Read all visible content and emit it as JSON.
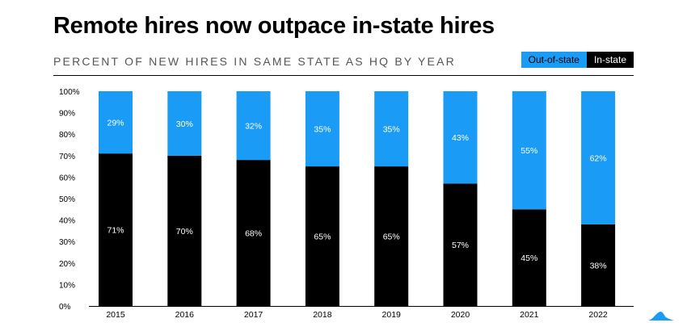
{
  "title": "Remote hires now outpace in-state hires",
  "subtitle": "PERCENT OF NEW HIRES IN SAME STATE AS HQ BY YEAR",
  "colors": {
    "out_of_state": "#1a9bf5",
    "in_state": "#000000",
    "logo": "#1a9bf5"
  },
  "legend": [
    {
      "label": "Out-of-state",
      "color": "#1a9bf5",
      "text_color": "#000000"
    },
    {
      "label": "In-state",
      "color": "#000000",
      "text_color": "#ffffff"
    }
  ],
  "chart_data": {
    "type": "bar",
    "stacked": true,
    "categories": [
      "2015",
      "2016",
      "2017",
      "2018",
      "2019",
      "2020",
      "2021",
      "2022"
    ],
    "series": [
      {
        "name": "In-state",
        "color": "#000000",
        "label_color": "#ffffff",
        "values": [
          71,
          70,
          68,
          65,
          65,
          57,
          45,
          38
        ]
      },
      {
        "name": "Out-of-state",
        "color": "#1a9bf5",
        "label_color": "#ffffff",
        "values": [
          29,
          30,
          32,
          35,
          35,
          43,
          55,
          62
        ]
      }
    ],
    "value_suffix": "%",
    "ylim": [
      0,
      100
    ],
    "yticks": [
      "0%",
      "10%",
      "20%",
      "30%",
      "40%",
      "50%",
      "60%",
      "70%",
      "80%",
      "90%",
      "100%"
    ],
    "legend_position": "top-right",
    "grid": false
  }
}
